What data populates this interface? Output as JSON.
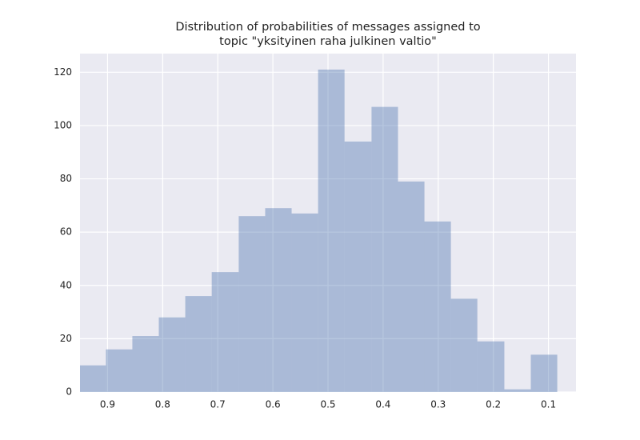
{
  "chart_data": {
    "type": "histogram",
    "title": [
      "Distribution of probabilities of messages assigned to",
      "topic \"yksityinen raha julkinen valtio\""
    ],
    "bins": [
      0.084,
      0.132,
      0.18,
      0.229,
      0.277,
      0.325,
      0.373,
      0.421,
      0.47,
      0.518,
      0.566,
      0.614,
      0.662,
      0.711,
      0.759,
      0.807,
      0.855,
      0.903,
      0.952
    ],
    "values": [
      14,
      1,
      19,
      35,
      64,
      79,
      107,
      94,
      121,
      67,
      69,
      66,
      45,
      36,
      28,
      21,
      16,
      10
    ],
    "color": "#4c72b0",
    "alpha": 0.4,
    "xlim": [
      0.95,
      0.05
    ],
    "xticks": [
      0.9,
      0.8,
      0.7,
      0.6,
      0.5,
      0.4,
      0.3,
      0.2,
      0.1
    ],
    "ylim": [
      0,
      127
    ],
    "yticks": [
      0,
      20,
      40,
      60,
      80,
      100,
      120
    ],
    "grid": true
  }
}
